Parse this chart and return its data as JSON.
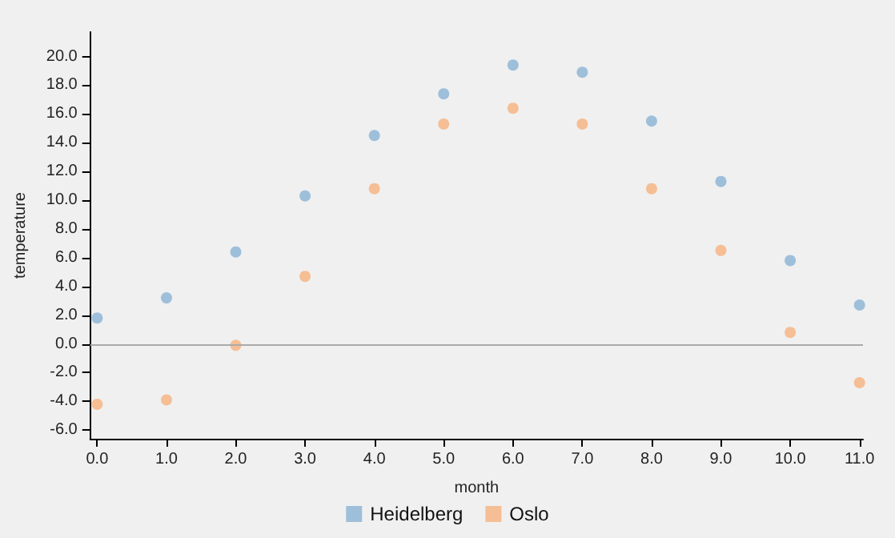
{
  "chart_data": {
    "type": "scatter",
    "xlabel": "month",
    "ylabel": "temperature",
    "x": [
      0,
      1,
      2,
      3,
      4,
      5,
      6,
      7,
      8,
      9,
      10,
      11
    ],
    "series": [
      {
        "name": "Heidelberg",
        "color": "#8ab3d5",
        "values": [
          1.8,
          3.2,
          6.4,
          10.3,
          14.5,
          17.4,
          19.4,
          18.9,
          15.5,
          11.3,
          5.8,
          2.7
        ]
      },
      {
        "name": "Oslo",
        "color": "#f7b27e",
        "values": [
          -4.2,
          -3.9,
          -0.1,
          4.7,
          10.8,
          15.3,
          16.4,
          15.3,
          10.8,
          6.5,
          0.8,
          -2.7
        ]
      }
    ],
    "xlim": [
      -0.1,
      11.05
    ],
    "ylim": [
      -6.6,
      21.7
    ],
    "xticks": [
      {
        "value": 0,
        "label": "0.0"
      },
      {
        "value": 1,
        "label": "1.0"
      },
      {
        "value": 2,
        "label": "2.0"
      },
      {
        "value": 3,
        "label": "3.0"
      },
      {
        "value": 4,
        "label": "4.0"
      },
      {
        "value": 5,
        "label": "5.0"
      },
      {
        "value": 6,
        "label": "6.0"
      },
      {
        "value": 7,
        "label": "7.0"
      },
      {
        "value": 8,
        "label": "8.0"
      },
      {
        "value": 9,
        "label": "9.0"
      },
      {
        "value": 10,
        "label": "10.0"
      },
      {
        "value": 11,
        "label": "11.0"
      }
    ],
    "yticks": [
      {
        "value": -6,
        "label": "-6.0"
      },
      {
        "value": -4,
        "label": "-4.0"
      },
      {
        "value": -2,
        "label": "-2.0"
      },
      {
        "value": 0,
        "label": "0.0"
      },
      {
        "value": 2,
        "label": "2.0"
      },
      {
        "value": 4,
        "label": "4.0"
      },
      {
        "value": 6,
        "label": "6.0"
      },
      {
        "value": 8,
        "label": "8.0"
      },
      {
        "value": 10,
        "label": "10.0"
      },
      {
        "value": 12,
        "label": "12.0"
      },
      {
        "value": 14,
        "label": "14.0"
      },
      {
        "value": 16,
        "label": "16.0"
      },
      {
        "value": 18,
        "label": "18.0"
      },
      {
        "value": 20,
        "label": "20.0"
      }
    ],
    "ref_lines": [
      {
        "axis": "y",
        "value": 0,
        "color": "#aaaaaa"
      }
    ],
    "grid": false,
    "legend": "bottom",
    "marker": "circle"
  }
}
